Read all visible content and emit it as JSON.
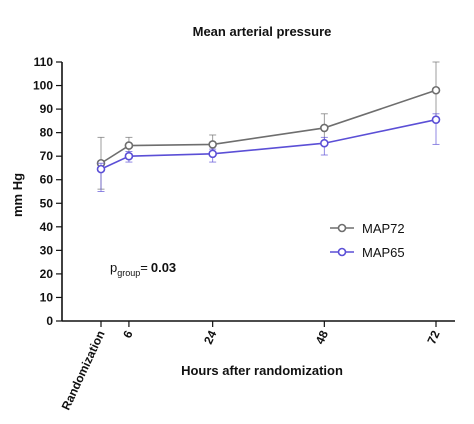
{
  "chart_data": {
    "type": "line",
    "title": "Mean arterial pressure",
    "xlabel": "Hours after randomization",
    "ylabel": "mm Hg",
    "categories": [
      "Randomization",
      "6",
      "24",
      "48",
      "72"
    ],
    "x": [
      0,
      6,
      24,
      48,
      72
    ],
    "ylim": [
      0,
      110
    ],
    "yticks": [
      0,
      10,
      20,
      30,
      40,
      50,
      60,
      70,
      80,
      90,
      100,
      110
    ],
    "grid": false,
    "legend_position": "right",
    "series": [
      {
        "name": "MAP72",
        "color": "#6e6e6e",
        "values": [
          67,
          74.5,
          75,
          82,
          98
        ],
        "error_upper": [
          78,
          78,
          79,
          88,
          110
        ],
        "error_lower": [
          56,
          71,
          71,
          76,
          86
        ]
      },
      {
        "name": "MAP65",
        "color": "#5b4fd6",
        "values": [
          64.5,
          70,
          71,
          75.5,
          85.5
        ],
        "error_upper": [
          67,
          72,
          73,
          78,
          88
        ],
        "error_lower": [
          55,
          67.5,
          67.5,
          70.5,
          75
        ]
      }
    ],
    "annotation": {
      "p_text": "p",
      "p_subscript": "group",
      "p_eq": "=",
      "p_value": "0.03"
    }
  }
}
